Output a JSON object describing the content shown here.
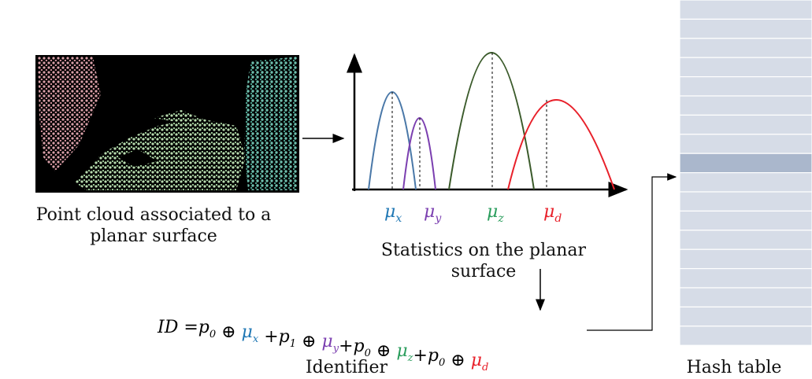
{
  "point_cloud": {
    "caption_lines": [
      "Point cloud associated to a",
      "planar surface"
    ]
  },
  "statistics": {
    "labels": [
      {
        "text": "μ",
        "sub": "x",
        "color": "#1f77b4"
      },
      {
        "text": "μ",
        "sub": "y",
        "color": "#7b3fb0"
      },
      {
        "text": "μ",
        "sub": "z",
        "color": "#2a9d5c"
      },
      {
        "text": "μ",
        "sub": "d",
        "color": "#e8202a"
      }
    ],
    "caption_lines": [
      "Statistics on the planar",
      "surface"
    ]
  },
  "identifier": {
    "formula": [
      {
        "text": "ID =p",
        "sub": "0"
      },
      {
        "text": " ⊕ "
      },
      {
        "text": "μ",
        "sub": "x",
        "color": "#1f77b4"
      },
      {
        "text": " +p",
        "sub": "1"
      },
      {
        "text": " ⊕ "
      },
      {
        "text": "μ",
        "sub": "y",
        "color": "#7b3fb0"
      },
      {
        "text": "+p",
        "sub": "0"
      },
      {
        "text": " ⊕ "
      },
      {
        "text": "μ",
        "sub": "z",
        "color": "#2a9d5c"
      },
      {
        "text": "+p",
        "sub": "0"
      },
      {
        "text": " ⊕ "
      },
      {
        "text": "μ",
        "sub": "d",
        "color": "#e8202a"
      }
    ],
    "caption": "Identifier"
  },
  "hash_table": {
    "caption": "Hash table"
  }
}
